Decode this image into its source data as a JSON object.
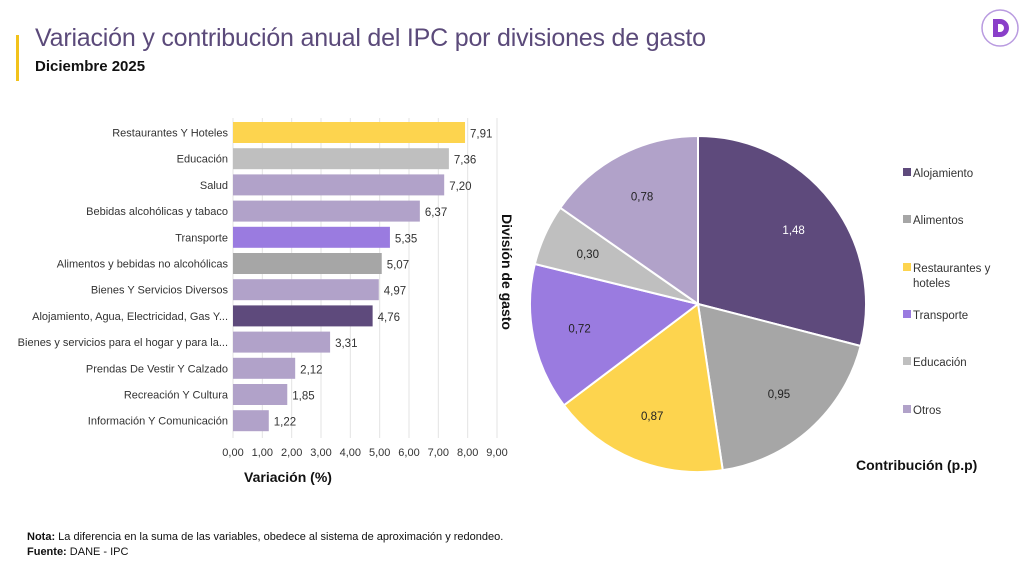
{
  "header": {
    "title": "Variación  y contribución anual del IPC por divisiones de gasto",
    "subtitle": "Diciembre 2025",
    "logo_text": "D"
  },
  "colors": {
    "accent": "#f2c21b",
    "alojamiento": "#5e4a7c",
    "alimentos": "#a6a6a6",
    "restaurantes": "#fdd44e",
    "transporte": "#9a7be0",
    "educacion": "#bfbfbf",
    "otros": "#b1a2c9"
  },
  "chart_data": [
    {
      "type": "bar",
      "orientation": "horizontal",
      "categories": [
        "Restaurantes Y Hoteles",
        "Educación",
        "Salud",
        "Bebidas alcohólicas y tabaco",
        "Transporte",
        "Alimentos y bebidas no alcohólicas",
        "Bienes Y Servicios Diversos",
        "Alojamiento, Agua, Electricidad, Gas Y...",
        "Bienes y servicios para el hogar y para la...",
        "Prendas De Vestir Y Calzado",
        "Recreación Y Cultura",
        "Información Y Comunicación"
      ],
      "values": [
        7.91,
        7.36,
        7.2,
        6.37,
        5.35,
        5.07,
        4.97,
        4.76,
        3.31,
        2.12,
        1.85,
        1.22
      ],
      "value_labels": [
        "7,91",
        "7,36",
        "7,20",
        "6,37",
        "5,35",
        "5,07",
        "4,97",
        "4,76",
        "3,31",
        "2,12",
        "1,85",
        "1,22"
      ],
      "bar_colors": [
        "#fdd44e",
        "#bfbfbf",
        "#b1a2c9",
        "#b1a2c9",
        "#9a7be0",
        "#a6a6a6",
        "#b1a2c9",
        "#5e4a7c",
        "#b1a2c9",
        "#b1a2c9",
        "#b1a2c9",
        "#b1a2c9"
      ],
      "xlabel": "Variación (%)",
      "ylabel": "División de gasto",
      "xlim": [
        0,
        9
      ],
      "xticks": [
        "0,00",
        "1,00",
        "2,00",
        "3,00",
        "4,00",
        "5,00",
        "6,00",
        "7,00",
        "8,00",
        "9,00"
      ],
      "grid": "vertical"
    },
    {
      "type": "pie",
      "title": "Contribución (p.p)",
      "slices": [
        {
          "name": "Alojamiento",
          "value": 1.48,
          "label": "1,48",
          "color": "#5e4a7c",
          "label_color": "#ffffff"
        },
        {
          "name": "Alimentos",
          "value": 0.95,
          "label": "0,95",
          "color": "#a6a6a6",
          "label_color": "#222222"
        },
        {
          "name": "Restaurantes y hoteles",
          "value": 0.87,
          "label": "0,87",
          "color": "#fdd44e",
          "label_color": "#222222"
        },
        {
          "name": "Transporte",
          "value": 0.72,
          "label": "0,72",
          "color": "#9a7be0",
          "label_color": "#222222"
        },
        {
          "name": "Educación",
          "value": 0.3,
          "label": "0,30",
          "color": "#bfbfbf",
          "label_color": "#222222"
        },
        {
          "name": "Otros",
          "value": 0.78,
          "label": "0,78",
          "color": "#b1a2c9",
          "label_color": "#222222"
        }
      ],
      "legend": [
        "Alojamiento",
        "Alimentos",
        "Restaurantes y hoteles",
        "Transporte",
        "Educación",
        "Otros"
      ],
      "legend_placement": "right",
      "start": "top, clockwise"
    }
  ],
  "footer": {
    "nota_label": "Nota:",
    "nota_text": " La diferencia en la suma de las variables, obedece al sistema de aproximación y redondeo.",
    "fuente_label": "Fuente:",
    "fuente_text": " DANE - IPC"
  }
}
